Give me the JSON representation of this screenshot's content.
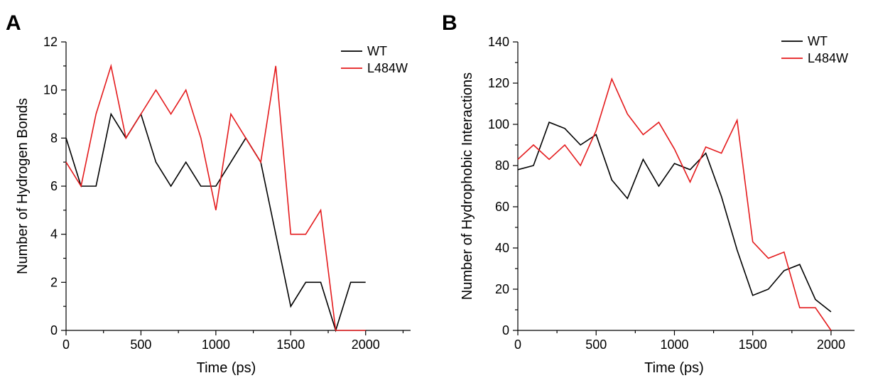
{
  "chart_data": [
    {
      "panel_label": "A",
      "type": "line",
      "xlabel": "Time (ps)",
      "ylabel": "Number of Hydrogen Bonds",
      "xlim": [
        0,
        2300
      ],
      "ylim": [
        0,
        12
      ],
      "xticks": [
        0,
        500,
        1000,
        1500,
        2000
      ],
      "xtick_labels": [
        "0",
        "500",
        "1000",
        "1500",
        "2000"
      ],
      "yticks": [
        0,
        2,
        4,
        6,
        8,
        10,
        12
      ],
      "ytick_labels": [
        "0",
        "2",
        "4",
        "6",
        "8",
        "10",
        "12"
      ],
      "grid": false,
      "legend_position": "top-right",
      "x": [
        0,
        100,
        200,
        300,
        400,
        500,
        600,
        700,
        800,
        900,
        1000,
        1100,
        1200,
        1300,
        1400,
        1500,
        1600,
        1700,
        1800,
        1900,
        2000
      ],
      "series": [
        {
          "name": "WT",
          "color": "#000000",
          "values": [
            8,
            6,
            6,
            9,
            8,
            9,
            7,
            6,
            7,
            6,
            6,
            7,
            8,
            7,
            4,
            1,
            2,
            2,
            0,
            2,
            2
          ]
        },
        {
          "name": "L484W",
          "color": "#e41a1c",
          "values": [
            7,
            6,
            9,
            11,
            8,
            9,
            10,
            9,
            10,
            8,
            5,
            9,
            8,
            7,
            11,
            4,
            4,
            5,
            0,
            0,
            0
          ]
        }
      ]
    },
    {
      "panel_label": "B",
      "type": "line",
      "xlabel": "Time (ps)",
      "ylabel": "Number of Hydrophobic Interactions",
      "xlim": [
        0,
        2150
      ],
      "ylim": [
        0,
        140
      ],
      "xticks": [
        0,
        500,
        1000,
        1500,
        2000
      ],
      "xtick_labels": [
        "0",
        "500",
        "1000",
        "1500",
        "2000"
      ],
      "yticks": [
        0,
        20,
        40,
        60,
        80,
        100,
        120,
        140
      ],
      "ytick_labels": [
        "0",
        "20",
        "40",
        "60",
        "80",
        "100",
        "120",
        "140"
      ],
      "grid": false,
      "legend_position": "top-right",
      "x": [
        0,
        100,
        200,
        300,
        400,
        500,
        600,
        700,
        800,
        900,
        1000,
        1100,
        1200,
        1300,
        1400,
        1500,
        1600,
        1700,
        1800,
        1900,
        2000
      ],
      "series": [
        {
          "name": "WT",
          "color": "#000000",
          "values": [
            78,
            80,
            101,
            98,
            90,
            95,
            73,
            64,
            83,
            70,
            81,
            78,
            86,
            65,
            39,
            17,
            20,
            29,
            32,
            15,
            9
          ]
        },
        {
          "name": "L484W",
          "color": "#e41a1c",
          "values": [
            83,
            90,
            83,
            90,
            80,
            97,
            122,
            105,
            95,
            101,
            88,
            72,
            89,
            86,
            102,
            43,
            35,
            38,
            11,
            11,
            0
          ]
        }
      ]
    }
  ]
}
